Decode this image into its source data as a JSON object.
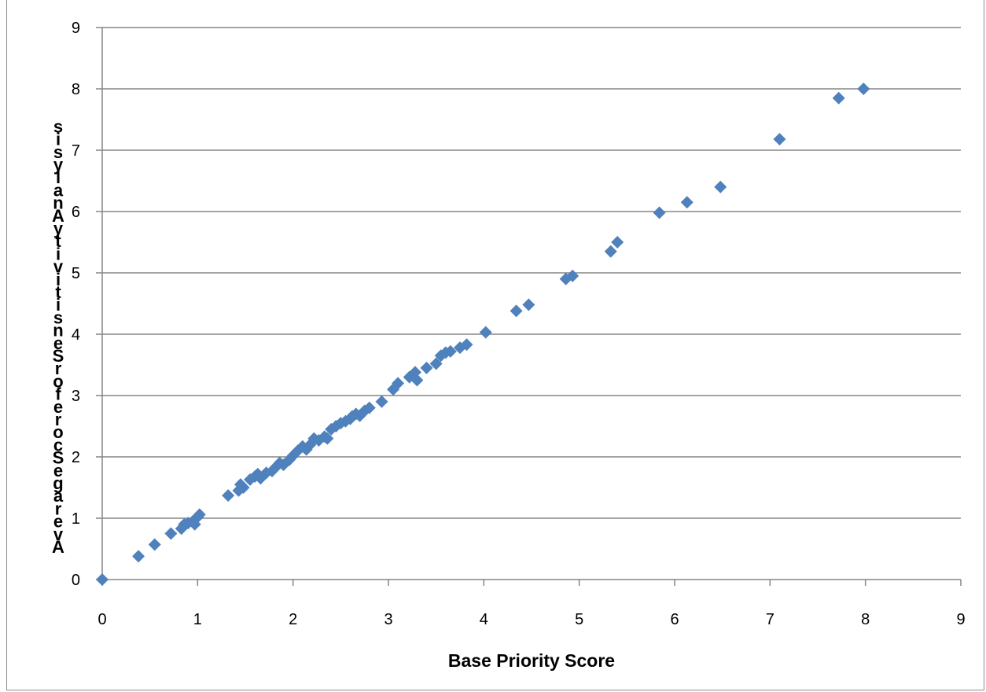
{
  "chart_data": {
    "type": "scatter",
    "title": "",
    "xlabel": "Base Priority Score",
    "ylabel": "Average Score for Sensitivity Analysis",
    "xlim": [
      0,
      9
    ],
    "ylim": [
      0,
      9
    ],
    "x_ticks": [
      "0",
      "1",
      "2",
      "3",
      "4",
      "5",
      "6",
      "7",
      "8",
      "9"
    ],
    "y_ticks": [
      "0",
      "1",
      "2",
      "3",
      "4",
      "5",
      "6",
      "7",
      "8",
      "9"
    ],
    "grid": "horizontal",
    "legend": "none",
    "marker_color": "#4F81BD",
    "series": [
      {
        "x": [
          0,
          0.38,
          0.55,
          0.72,
          0.83,
          0.86,
          0.9,
          0.95,
          0.97,
          1.0,
          1.02,
          1.32,
          1.43,
          1.45,
          1.48,
          1.55,
          1.6,
          1.63,
          1.66,
          1.72,
          1.78,
          1.83,
          1.86,
          1.9,
          1.96,
          2.0,
          2.05,
          2.1,
          2.14,
          2.18,
          2.22,
          2.27,
          2.33,
          2.36,
          2.4,
          2.45,
          2.5,
          2.55,
          2.6,
          2.62,
          2.66,
          2.7,
          2.75,
          2.8,
          2.93,
          3.05,
          3.1,
          3.22,
          3.28,
          3.3,
          3.4,
          3.5,
          3.55,
          3.6,
          3.65,
          3.75,
          3.82,
          4.02,
          4.34,
          4.47,
          4.86,
          4.93,
          5.33,
          5.4,
          5.84,
          6.13,
          6.48,
          7.1,
          7.72,
          7.98
        ],
        "y": [
          0,
          0.38,
          0.57,
          0.75,
          0.83,
          0.9,
          0.92,
          0.95,
          0.9,
          1.02,
          1.06,
          1.37,
          1.45,
          1.55,
          1.5,
          1.63,
          1.68,
          1.72,
          1.65,
          1.74,
          1.77,
          1.85,
          1.9,
          1.87,
          1.95,
          2.02,
          2.1,
          2.17,
          2.12,
          2.2,
          2.3,
          2.27,
          2.33,
          2.3,
          2.45,
          2.5,
          2.55,
          2.58,
          2.62,
          2.66,
          2.7,
          2.67,
          2.75,
          2.8,
          2.9,
          3.1,
          3.2,
          3.3,
          3.38,
          3.25,
          3.45,
          3.52,
          3.65,
          3.7,
          3.72,
          3.78,
          3.83,
          4.03,
          4.38,
          4.48,
          4.9,
          4.95,
          5.35,
          5.5,
          5.98,
          6.15,
          6.4,
          7.18,
          7.85,
          8.0
        ]
      }
    ]
  }
}
